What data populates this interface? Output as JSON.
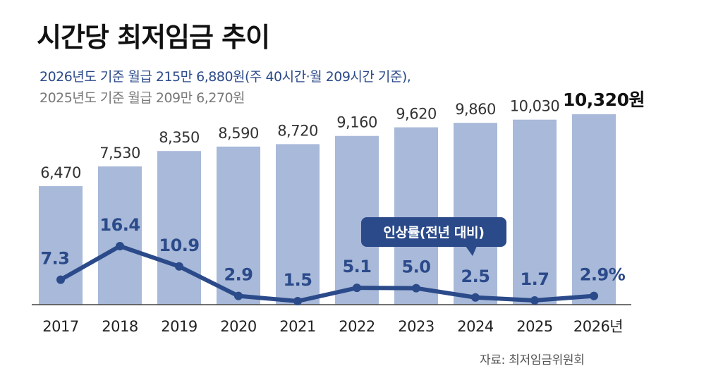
{
  "header": {
    "title": "시간당 최저임금 추이",
    "subtitle_2026": "2026년도 기준 월급 215만 6,880원(주 40시간·월 209시간 기준),",
    "subtitle_2025": "2025년도 기준 월급 209만 6,270원"
  },
  "source": "자료: 최저임금위원회",
  "colors": {
    "bar": "#a8b9d9",
    "line": "#2b4a8a",
    "callout": "#2b4a8a"
  },
  "chart_data": {
    "type": "bar",
    "categories": [
      "2017",
      "2018",
      "2019",
      "2020",
      "2021",
      "2022",
      "2023",
      "2024",
      "2025",
      "2026년"
    ],
    "series": [
      {
        "values": [
          6470,
          7530,
          8350,
          8590,
          8720,
          9160,
          9620,
          9860,
          10030,
          10320
        ],
        "labels": [
          "6,470",
          "7,530",
          "8,350",
          "8,590",
          "8,720",
          "9,160",
          "9,620",
          "9,860",
          "10,030",
          "10,320원"
        ]
      },
      {
        "name": "인상률(전년 대비)",
        "type": "line",
        "values": [
          7.3,
          16.4,
          10.9,
          2.9,
          1.5,
          5.1,
          5.0,
          2.5,
          1.7,
          2.9
        ],
        "labels": [
          "7.3",
          "16.4",
          "10.9",
          "2.9",
          "1.5",
          "5.1",
          "5.0",
          "2.5",
          "1.7",
          "2.9%"
        ]
      }
    ]
  }
}
